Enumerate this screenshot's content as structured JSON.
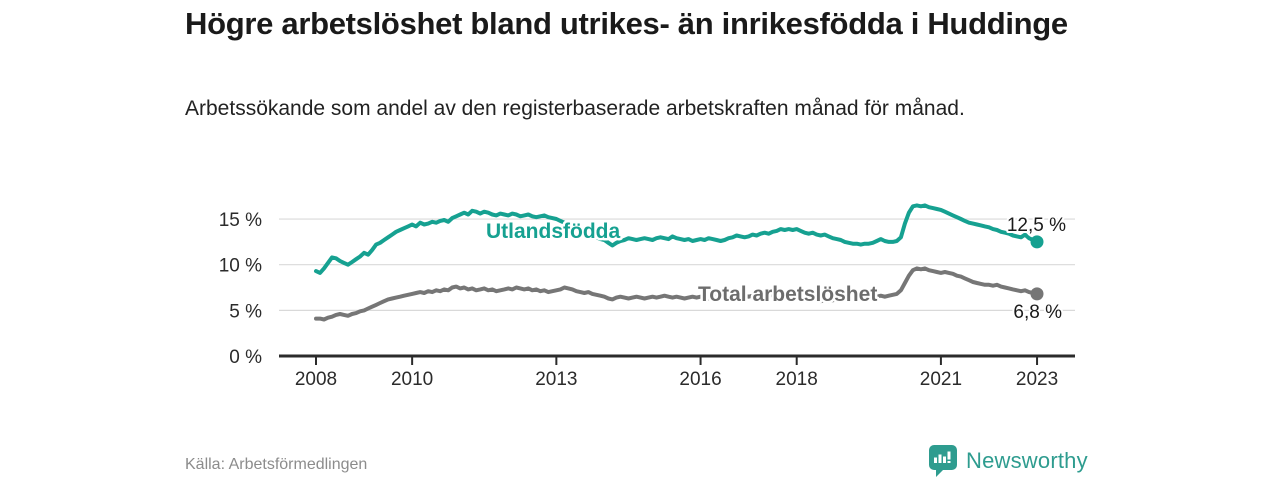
{
  "header": {
    "title": "Högre arbetslöshet bland utrikes- än inrikesfödda i Huddinge",
    "subtitle": "Arbetssökande som andel av den registerbaserade arbetskraften månad för månad."
  },
  "footer": {
    "source": "Källa: Arbetsförmedlingen",
    "brand": "Newsworthy",
    "logo_icon": "bar-chart-badge-icon"
  },
  "colors": {
    "series_foreign_born": "#16a191",
    "series_total": "#767676",
    "series_total_label": "#6d6d6d",
    "axis": "#2b2b2b",
    "gridline": "#d9d9d9",
    "end_label_text": "#1a1a1a",
    "brand_teal": "#2e9c8f"
  },
  "chart_data": {
    "type": "line",
    "title": "Högre arbetslöshet bland utrikes- än inrikesfödda i Huddinge",
    "subtitle": "Arbetssökande som andel av den registerbaserade arbetskraften månad för månad.",
    "y_unit": "%",
    "ylim": [
      0,
      17
    ],
    "grid": "horizontal",
    "legend_position": "inline-labels",
    "x_start": 2008,
    "x_step_months": 1,
    "x_ticks": [
      {
        "year": 2008,
        "label": "2008"
      },
      {
        "year": 2010,
        "label": "2010"
      },
      {
        "year": 2013,
        "label": "2013"
      },
      {
        "year": 2016,
        "label": "2016"
      },
      {
        "year": 2018,
        "label": "2018"
      },
      {
        "year": 2021,
        "label": "2021"
      },
      {
        "year": 2023,
        "label": "2023"
      }
    ],
    "y_ticks": [
      {
        "value": 0,
        "label": "0 %"
      },
      {
        "value": 5,
        "label": "5 %"
      },
      {
        "value": 10,
        "label": "10 %"
      },
      {
        "value": 15,
        "label": "15 %"
      }
    ],
    "series": [
      {
        "key": "utlandsfodda",
        "name": "Utlandsfödda",
        "color": "#16a191",
        "label_color": "#16a191",
        "end_label": "12,5 %",
        "end_value": 12.5,
        "values": [
          9.3,
          9.1,
          9.6,
          10.2,
          10.8,
          10.7,
          10.4,
          10.2,
          10.0,
          10.3,
          10.6,
          10.9,
          11.3,
          11.1,
          11.6,
          12.2,
          12.4,
          12.7,
          13.0,
          13.3,
          13.6,
          13.8,
          14.0,
          14.2,
          14.4,
          14.2,
          14.6,
          14.4,
          14.5,
          14.7,
          14.6,
          14.8,
          14.9,
          14.7,
          15.1,
          15.3,
          15.5,
          15.7,
          15.5,
          15.9,
          15.8,
          15.6,
          15.8,
          15.7,
          15.5,
          15.4,
          15.6,
          15.5,
          15.4,
          15.6,
          15.5,
          15.3,
          15.4,
          15.5,
          15.3,
          15.2,
          15.3,
          15.4,
          15.2,
          15.1,
          15.0,
          14.8,
          14.6,
          14.4,
          14.2,
          14.0,
          13.8,
          13.6,
          13.4,
          13.2,
          13.0,
          12.8,
          12.7,
          12.4,
          12.1,
          12.4,
          12.6,
          12.7,
          12.9,
          12.8,
          12.7,
          12.8,
          12.9,
          12.8,
          12.7,
          12.9,
          13.0,
          12.9,
          12.8,
          13.1,
          12.9,
          12.8,
          12.7,
          12.8,
          12.6,
          12.7,
          12.8,
          12.7,
          12.9,
          12.8,
          12.7,
          12.6,
          12.7,
          12.9,
          13.0,
          13.2,
          13.1,
          13.0,
          13.1,
          13.3,
          13.2,
          13.4,
          13.5,
          13.4,
          13.6,
          13.7,
          13.9,
          13.8,
          13.9,
          13.8,
          13.9,
          13.7,
          13.5,
          13.4,
          13.5,
          13.3,
          13.2,
          13.3,
          13.1,
          12.9,
          12.8,
          12.7,
          12.5,
          12.4,
          12.3,
          12.3,
          12.2,
          12.3,
          12.3,
          12.4,
          12.6,
          12.8,
          12.6,
          12.5,
          12.5,
          12.6,
          13.0,
          14.5,
          15.7,
          16.4,
          16.5,
          16.4,
          16.5,
          16.3,
          16.2,
          16.1,
          16.0,
          15.8,
          15.6,
          15.4,
          15.2,
          15.0,
          14.8,
          14.6,
          14.5,
          14.4,
          14.3,
          14.2,
          14.1,
          13.9,
          13.8,
          13.6,
          13.5,
          13.4,
          13.2,
          13.1,
          13.0,
          13.3,
          12.9,
          12.7,
          12.5
        ]
      },
      {
        "key": "total",
        "name": "Total arbetslöshet",
        "color": "#767676",
        "label_color": "#6d6d6d",
        "end_label": "6,8 %",
        "end_value": 6.8,
        "values": [
          4.1,
          4.1,
          4.0,
          4.2,
          4.3,
          4.5,
          4.6,
          4.5,
          4.4,
          4.6,
          4.7,
          4.9,
          5.0,
          5.2,
          5.4,
          5.6,
          5.8,
          6.0,
          6.2,
          6.3,
          6.4,
          6.5,
          6.6,
          6.7,
          6.8,
          6.9,
          7.0,
          6.9,
          7.1,
          7.0,
          7.2,
          7.1,
          7.3,
          7.2,
          7.5,
          7.6,
          7.4,
          7.5,
          7.3,
          7.4,
          7.2,
          7.3,
          7.4,
          7.2,
          7.3,
          7.1,
          7.2,
          7.3,
          7.4,
          7.3,
          7.5,
          7.4,
          7.3,
          7.4,
          7.2,
          7.3,
          7.1,
          7.2,
          7.0,
          7.1,
          7.2,
          7.3,
          7.5,
          7.4,
          7.3,
          7.1,
          7.0,
          6.9,
          7.0,
          6.8,
          6.7,
          6.6,
          6.5,
          6.3,
          6.2,
          6.4,
          6.5,
          6.4,
          6.3,
          6.4,
          6.5,
          6.4,
          6.3,
          6.4,
          6.5,
          6.4,
          6.5,
          6.6,
          6.5,
          6.4,
          6.5,
          6.4,
          6.3,
          6.4,
          6.5,
          6.4,
          6.5,
          6.4,
          6.3,
          6.4,
          6.5,
          6.4,
          6.5,
          6.6,
          6.5,
          6.6,
          6.5,
          6.6,
          6.5,
          6.6,
          6.7,
          6.6,
          6.5,
          6.6,
          6.7,
          6.6,
          6.5,
          6.4,
          6.5,
          6.4,
          6.3,
          6.4,
          6.2,
          6.3,
          6.1,
          6.2,
          6.0,
          6.1,
          6.0,
          6.1,
          6.2,
          6.1,
          6.2,
          6.1,
          6.2,
          6.3,
          6.2,
          6.4,
          6.5,
          6.4,
          6.5,
          6.6,
          6.5,
          6.6,
          6.7,
          6.8,
          7.2,
          8.0,
          8.8,
          9.4,
          9.6,
          9.5,
          9.6,
          9.4,
          9.3,
          9.2,
          9.1,
          9.2,
          9.1,
          9.0,
          8.8,
          8.7,
          8.5,
          8.3,
          8.1,
          8.0,
          7.9,
          7.8,
          7.8,
          7.7,
          7.8,
          7.6,
          7.5,
          7.4,
          7.3,
          7.2,
          7.1,
          7.2,
          7.0,
          6.9,
          6.8
        ]
      }
    ]
  }
}
